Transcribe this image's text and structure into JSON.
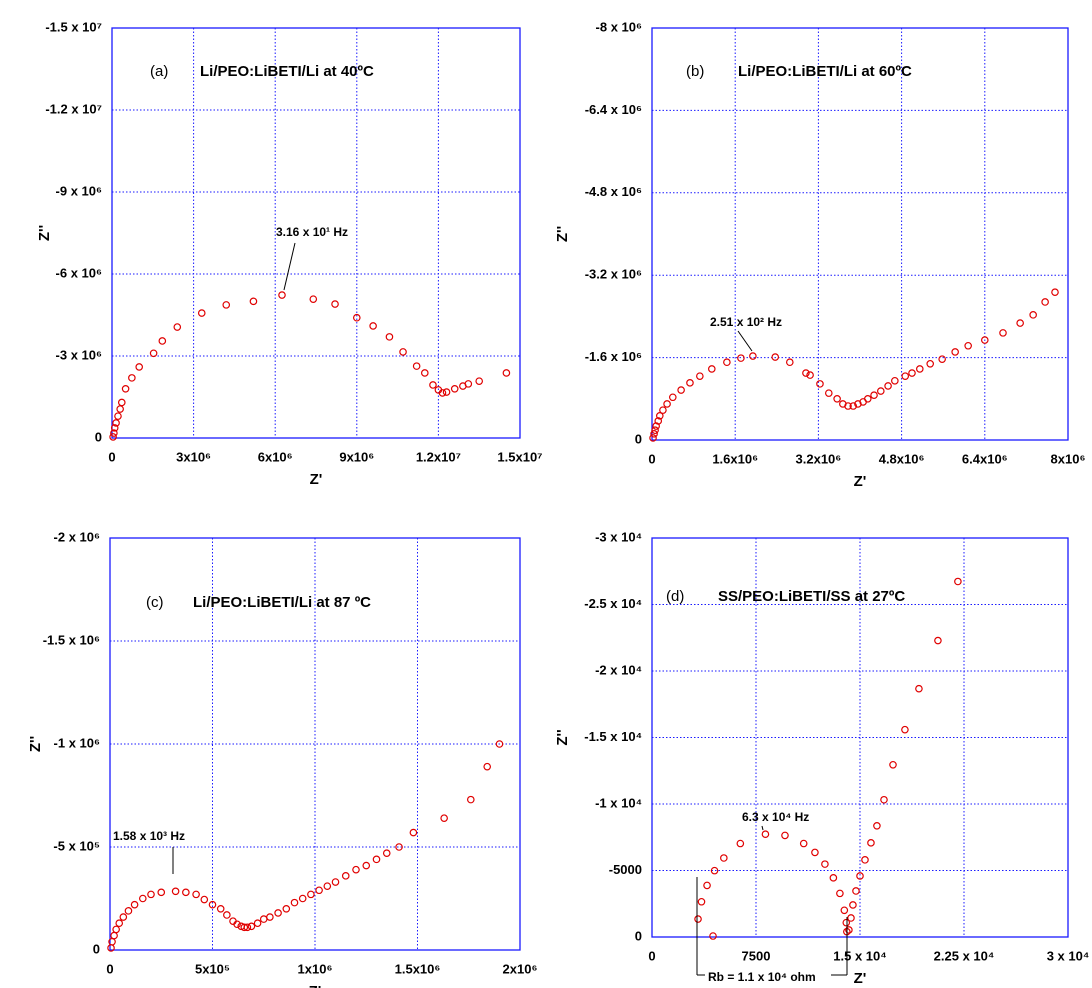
{
  "chart_data": [
    {
      "type": "scatter",
      "label": "(a)",
      "title": "Li/PEO:LiBETI/Li at 40ºC",
      "x_label": "Z'",
      "y_label": "Z''",
      "color": "#e00000",
      "grid": true,
      "xlim": [
        0,
        15000000.0
      ],
      "ylim": [
        0,
        -15000000.0
      ],
      "xticks": [
        0,
        {
          "value": 3000000.0,
          "label": "3x10⁶"
        },
        {
          "value": 6000000.0,
          "label": "6x10⁶"
        },
        {
          "value": 9000000.0,
          "label": "9x10⁶"
        },
        {
          "value": 12000000.0,
          "label": "1.2x10⁷"
        },
        {
          "value": 15000000.0,
          "label": "1.5x10⁷"
        }
      ],
      "yticks": [
        0,
        {
          "value": -3000000.0,
          "label": "-3 x 10⁶"
        },
        {
          "value": -6000000.0,
          "label": "-6 x 10⁶"
        },
        {
          "value": -9000000.0,
          "label": "-9 x 10⁶"
        },
        {
          "value": -12000000.0,
          "label": "-1.2 x 10⁷"
        },
        {
          "value": -15000000.0,
          "label": "-1.5 x 10⁷"
        }
      ],
      "annotations": [
        "3.16 x 10¹ Hz"
      ],
      "x": [
        40000.0,
        70000.0,
        100000.0,
        150000.0,
        220000.0,
        300000.0,
        360000.0,
        500000.0,
        730000.0,
        1000000.0,
        1530000.0,
        1850000.0,
        2400000.0,
        3300000.0,
        4200000.0,
        5200000.0,
        6250000.0,
        7400000.0,
        8200000.0,
        9000000.0,
        9600000.0,
        10200000.0,
        10700000.0,
        11200000.0,
        11500000.0,
        11800000.0,
        12000000.0,
        12150000.0,
        12300000.0,
        12600000.0,
        12900000.0,
        13100000.0,
        13500000.0,
        14500000.0
      ],
      "values": [
        -40000.0,
        -180000.0,
        -370000.0,
        -550000.0,
        -800000.0,
        -1060000.0,
        -1300000.0,
        -1800000.0,
        -2200000.0,
        -2600000.0,
        -3100000.0,
        -3550000.0,
        -4060000.0,
        -4570000.0,
        -4870000.0,
        -5000000.0,
        -5230000.0,
        -5080000.0,
        -4900000.0,
        -4400000.0,
        -4100000.0,
        -3700000.0,
        -3150000.0,
        -2630000.0,
        -2380000.0,
        -1940000.0,
        -1760000.0,
        -1650000.0,
        -1680000.0,
        -1800000.0,
        -1900000.0,
        -1980000.0,
        -2080000.0,
        -2380000.0
      ]
    },
    {
      "type": "scatter",
      "label": "(b)",
      "title": "Li/PEO:LiBETI/Li at 60ºC",
      "x_label": "Z'",
      "y_label": "Z''",
      "color": "#e00000",
      "grid": true,
      "xlim": [
        0,
        8000000.0
      ],
      "ylim": [
        0,
        -8000000.0
      ],
      "xticks": [
        0,
        {
          "value": 1600000.0,
          "label": "1.6x10⁶"
        },
        {
          "value": 3200000.0,
          "label": "3.2x10⁶"
        },
        {
          "value": 4800000.0,
          "label": "4.8x10⁶"
        },
        {
          "value": 6400000.0,
          "label": "6.4x10⁶"
        },
        {
          "value": 8000000.0,
          "label": "8x10⁶"
        }
      ],
      "yticks": [
        0,
        {
          "value": -1600000.0,
          "label": "-1.6 x 10⁶"
        },
        {
          "value": -3200000.0,
          "label": "-3.2 x 10⁶"
        },
        {
          "value": -4800000.0,
          "label": "-4.8 x 10⁶"
        },
        {
          "value": -6400000.0,
          "label": "-6.4 x 10⁶"
        },
        {
          "value": -8000000.0,
          "label": "-8 x 10⁶"
        }
      ],
      "annotations": [
        "2.51 x 10² Hz"
      ],
      "x": [
        20000.0,
        40000.0,
        60000.0,
        80000.0,
        120000.0,
        150000.0,
        210000.0,
        290000.0,
        400000.0,
        560000.0,
        730000.0,
        920000.0,
        1150000.0,
        1440000.0,
        1710000.0,
        1940000.0,
        2370000.0,
        2650000.0,
        2960000.0,
        3040000.0,
        3230000.0,
        3400000.0,
        3560000.0,
        3670000.0,
        3770000.0,
        3870000.0,
        3960000.0,
        4060000.0,
        4150000.0,
        4270000.0,
        4400000.0,
        4540000.0,
        4670000.0,
        4870000.0,
        5000000.0,
        5150000.0,
        5350000.0,
        5580000.0,
        5830000.0,
        6080000.0,
        6400000.0,
        6750000.0,
        7080000.0,
        7330000.0,
        7560000.0,
        7750000.0
      ],
      "values": [
        -40000.0,
        -120000.0,
        -190000.0,
        -270000.0,
        -370000.0,
        -470000.0,
        -580000.0,
        -700000.0,
        -830000.0,
        -970000.0,
        -1110000.0,
        -1240000.0,
        -1380000.0,
        -1510000.0,
        -1590000.0,
        -1630000.0,
        -1610000.0,
        -1510000.0,
        -1300000.0,
        -1260000.0,
        -1090000.0,
        -910000.0,
        -800000.0,
        -700000.0,
        -660000.0,
        -660000.0,
        -700000.0,
        -740000.0,
        -800000.0,
        -870000.0,
        -950000.0,
        -1050000.0,
        -1150000.0,
        -1240000.0,
        -1300000.0,
        -1380000.0,
        -1480000.0,
        -1570000.0,
        -1710000.0,
        -1830000.0,
        -1940000.0,
        -2080000.0,
        -2270000.0,
        -2430000.0,
        -2680000.0,
        -2870000.0
      ]
    },
    {
      "type": "scatter",
      "label": "(c)",
      "title": "Li/PEO:LiBETI/Li at 87 ºC",
      "x_label": "Z'",
      "y_label": "Z''",
      "color": "#e00000",
      "grid": true,
      "xlim": [
        0,
        2000000.0
      ],
      "ylim": [
        0,
        -2000000.0
      ],
      "xticks": [
        0,
        {
          "value": 500000.0,
          "label": "5x10⁵"
        },
        {
          "value": 1000000.0,
          "label": "1x10⁶"
        },
        {
          "value": 1500000.0,
          "label": "1.5x10⁶"
        },
        {
          "value": 2000000.0,
          "label": "2x10⁶"
        }
      ],
      "yticks": [
        0,
        {
          "value": -500000.0,
          "label": "-5 x 10⁵"
        },
        {
          "value": -1000000.0,
          "label": "-1 x 10⁶"
        },
        {
          "value": -1500000.0,
          "label": "-1.5 x 10⁶"
        },
        {
          "value": -2000000.0,
          "label": "-2 x 10⁶"
        }
      ],
      "annotations": [
        "1.58 x 10³ Hz"
      ],
      "x": [
        5000.0,
        10000.0,
        20000.0,
        30000.0,
        45000.0,
        65000.0,
        90000.0,
        120000.0,
        160000.0,
        200000.0,
        250000.0,
        320000.0,
        370000.0,
        420000.0,
        460000.0,
        500000.0,
        540000.0,
        570000.0,
        600000.0,
        620000.0,
        640000.0,
        655000.0,
        670000.0,
        690000.0,
        720000.0,
        750000.0,
        780000.0,
        820000.0,
        860000.0,
        900000.0,
        940000.0,
        980000.0,
        1020000.0,
        1060000.0,
        1100000.0,
        1150000.0,
        1200000.0,
        1250000.0,
        1300000.0,
        1350000.0,
        1410000.0,
        1480000.0,
        1630000.0,
        1760000.0,
        1840000.0,
        1900000.0
      ],
      "values": [
        -10000.0,
        -40000.0,
        -70000.0,
        -100000.0,
        -130000.0,
        -160000.0,
        -190000.0,
        -220000.0,
        -250000.0,
        -270000.0,
        -280000.0,
        -285000.0,
        -280000.0,
        -270000.0,
        -245000.0,
        -220000.0,
        -200000.0,
        -170000.0,
        -140000.0,
        -125000.0,
        -115000.0,
        -110000.0,
        -110000.0,
        -115000.0,
        -130000.0,
        -150000.0,
        -160000.0,
        -180000.0,
        -200000.0,
        -230000.0,
        -250000.0,
        -270000.0,
        -290000.0,
        -310000.0,
        -330000.0,
        -360000.0,
        -390000.0,
        -410000.0,
        -440000.0,
        -470000.0,
        -500000.0,
        -570000.0,
        -640000.0,
        -730000.0,
        -890000.0,
        -1000000.0
      ]
    },
    {
      "type": "scatter",
      "label": "(d)",
      "title": "SS/PEO:LiBETI/SS at 27ºC",
      "x_label": "Z'",
      "y_label": "Z''",
      "color": "#e00000",
      "grid": true,
      "xlim": [
        0,
        30000.0
      ],
      "ylim": [
        0,
        -30000.0
      ],
      "xticks": [
        0,
        7500,
        {
          "value": 15000.0,
          "label": "1.5 x 10⁴"
        },
        {
          "value": 22500.0,
          "label": "2.25 x 10⁴"
        },
        {
          "value": 30000.0,
          "label": "3 x 10⁴"
        }
      ],
      "yticks": [
        0,
        -5000,
        {
          "value": -10000.0,
          "label": "-1 x 10⁴"
        },
        {
          "value": -15000.0,
          "label": "-1.5 x 10⁴"
        },
        {
          "value": -20000.0,
          "label": "-2 x 10⁴"
        },
        {
          "value": -25000.0,
          "label": "-2.5 x 10⁴"
        },
        {
          "value": -30000.0,
          "label": "-3 x 10⁴"
        }
      ],
      "annotations": [
        "6.3 x 10⁴ Hz",
        "Rb = 1.1 x 10⁴ ohm"
      ],
      "x": [
        4400,
        3320,
        3570,
        3970,
        4510,
        5180,
        6370,
        8180,
        9590,
        10940,
        11750,
        12470,
        13080,
        13550,
        13870,
        14010,
        14050,
        14200,
        14350,
        14490,
        14710,
        15000,
        15360,
        15790,
        16220,
        16730,
        17380,
        18240,
        19250,
        20620,
        22060
      ],
      "values": [
        -75,
        -1350,
        -2650,
        -3880,
        -4990,
        -5940,
        -7030,
        -7730,
        -7640,
        -7030,
        -6360,
        -5480,
        -4450,
        -3280,
        -2010,
        -1080,
        -400,
        -530,
        -1430,
        -2410,
        -3460,
        -4590,
        -5800,
        -7080,
        -8360,
        -10320,
        -12950,
        -15590,
        -18670,
        -22290,
        -26730
      ]
    }
  ]
}
